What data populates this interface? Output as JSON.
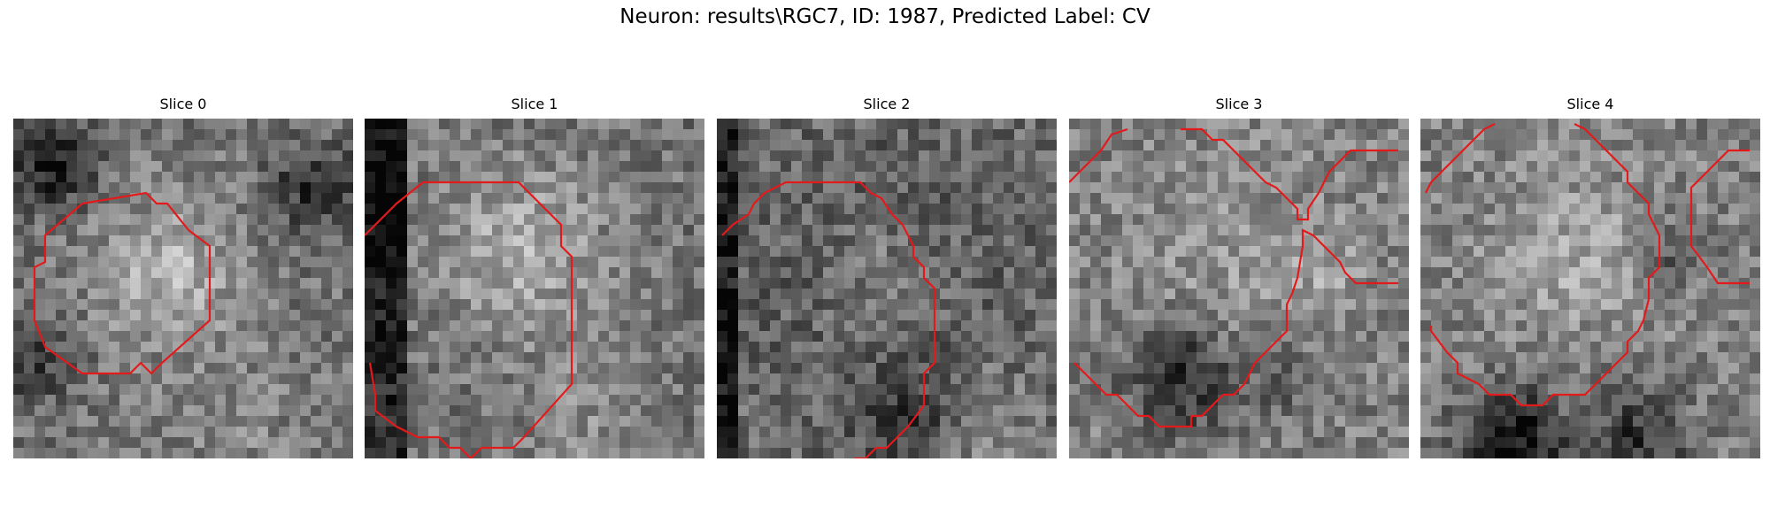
{
  "figure": {
    "title": "Neuron: results\\RGC7, ID: 1987, Predicted Label: CV"
  },
  "panels": [
    {
      "title": "Slice 0",
      "contour_color": "#e31a1c"
    },
    {
      "title": "Slice 1",
      "contour_color": "#e31a1c"
    },
    {
      "title": "Slice 2",
      "contour_color": "#e31a1c"
    },
    {
      "title": "Slice 3",
      "contour_color": "#e31a1c"
    },
    {
      "title": "Slice 4",
      "contour_color": "#e31a1c"
    }
  ]
}
